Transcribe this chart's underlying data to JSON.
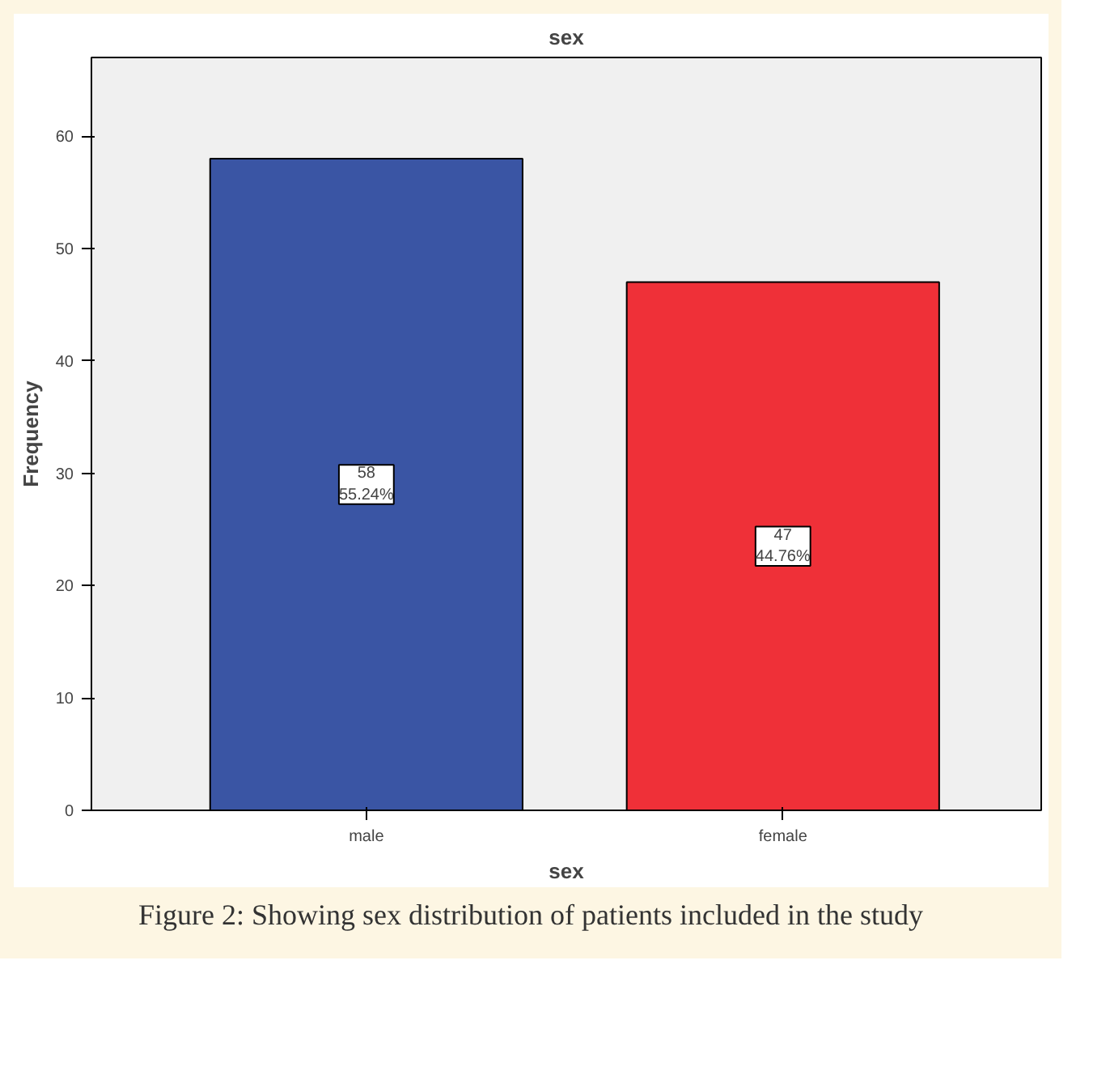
{
  "chart_data": {
    "type": "bar",
    "title": "sex",
    "xlabel": "sex",
    "ylabel": "Frequency",
    "categories": [
      "male",
      "female"
    ],
    "values": [
      58,
      47
    ],
    "colors": [
      "#3a55a4",
      "#ef3038"
    ],
    "value_labels": [
      "58\n55.24%",
      "47\n44.76%"
    ],
    "ylim": [
      0,
      67
    ],
    "yticks": [
      0,
      10,
      20,
      30,
      40,
      50,
      60
    ],
    "annotations": [
      "Figure 2: Showing sex distribution of patients included in the study"
    ]
  }
}
